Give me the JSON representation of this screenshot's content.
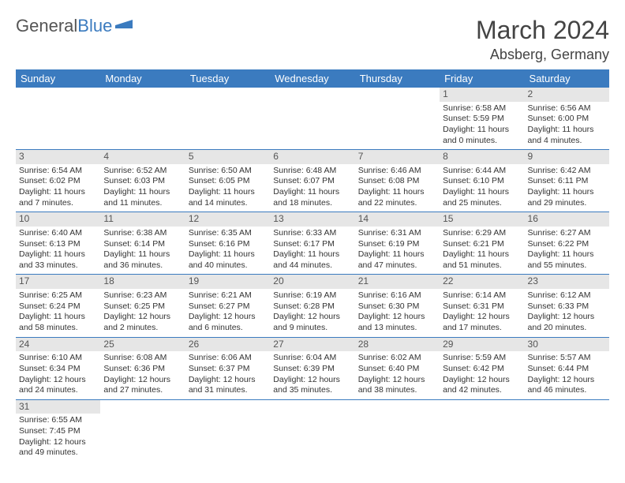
{
  "logo": {
    "text1": "General",
    "text2": "Blue"
  },
  "title": "March 2024",
  "location": "Absberg, Germany",
  "headers": [
    "Sunday",
    "Monday",
    "Tuesday",
    "Wednesday",
    "Thursday",
    "Friday",
    "Saturday"
  ],
  "colors": {
    "header_bg": "#3b7bbf",
    "header_fg": "#ffffff",
    "daynum_bg": "#e6e6e6",
    "cell_border": "#3b7bbf",
    "text": "#333333",
    "title": "#444444"
  },
  "weeks": [
    [
      null,
      null,
      null,
      null,
      null,
      {
        "n": "1",
        "sr": "6:58 AM",
        "ss": "5:59 PM",
        "dl": "11 hours and 0 minutes."
      },
      {
        "n": "2",
        "sr": "6:56 AM",
        "ss": "6:00 PM",
        "dl": "11 hours and 4 minutes."
      }
    ],
    [
      {
        "n": "3",
        "sr": "6:54 AM",
        "ss": "6:02 PM",
        "dl": "11 hours and 7 minutes."
      },
      {
        "n": "4",
        "sr": "6:52 AM",
        "ss": "6:03 PM",
        "dl": "11 hours and 11 minutes."
      },
      {
        "n": "5",
        "sr": "6:50 AM",
        "ss": "6:05 PM",
        "dl": "11 hours and 14 minutes."
      },
      {
        "n": "6",
        "sr": "6:48 AM",
        "ss": "6:07 PM",
        "dl": "11 hours and 18 minutes."
      },
      {
        "n": "7",
        "sr": "6:46 AM",
        "ss": "6:08 PM",
        "dl": "11 hours and 22 minutes."
      },
      {
        "n": "8",
        "sr": "6:44 AM",
        "ss": "6:10 PM",
        "dl": "11 hours and 25 minutes."
      },
      {
        "n": "9",
        "sr": "6:42 AM",
        "ss": "6:11 PM",
        "dl": "11 hours and 29 minutes."
      }
    ],
    [
      {
        "n": "10",
        "sr": "6:40 AM",
        "ss": "6:13 PM",
        "dl": "11 hours and 33 minutes."
      },
      {
        "n": "11",
        "sr": "6:38 AM",
        "ss": "6:14 PM",
        "dl": "11 hours and 36 minutes."
      },
      {
        "n": "12",
        "sr": "6:35 AM",
        "ss": "6:16 PM",
        "dl": "11 hours and 40 minutes."
      },
      {
        "n": "13",
        "sr": "6:33 AM",
        "ss": "6:17 PM",
        "dl": "11 hours and 44 minutes."
      },
      {
        "n": "14",
        "sr": "6:31 AM",
        "ss": "6:19 PM",
        "dl": "11 hours and 47 minutes."
      },
      {
        "n": "15",
        "sr": "6:29 AM",
        "ss": "6:21 PM",
        "dl": "11 hours and 51 minutes."
      },
      {
        "n": "16",
        "sr": "6:27 AM",
        "ss": "6:22 PM",
        "dl": "11 hours and 55 minutes."
      }
    ],
    [
      {
        "n": "17",
        "sr": "6:25 AM",
        "ss": "6:24 PM",
        "dl": "11 hours and 58 minutes."
      },
      {
        "n": "18",
        "sr": "6:23 AM",
        "ss": "6:25 PM",
        "dl": "12 hours and 2 minutes."
      },
      {
        "n": "19",
        "sr": "6:21 AM",
        "ss": "6:27 PM",
        "dl": "12 hours and 6 minutes."
      },
      {
        "n": "20",
        "sr": "6:19 AM",
        "ss": "6:28 PM",
        "dl": "12 hours and 9 minutes."
      },
      {
        "n": "21",
        "sr": "6:16 AM",
        "ss": "6:30 PM",
        "dl": "12 hours and 13 minutes."
      },
      {
        "n": "22",
        "sr": "6:14 AM",
        "ss": "6:31 PM",
        "dl": "12 hours and 17 minutes."
      },
      {
        "n": "23",
        "sr": "6:12 AM",
        "ss": "6:33 PM",
        "dl": "12 hours and 20 minutes."
      }
    ],
    [
      {
        "n": "24",
        "sr": "6:10 AM",
        "ss": "6:34 PM",
        "dl": "12 hours and 24 minutes."
      },
      {
        "n": "25",
        "sr": "6:08 AM",
        "ss": "6:36 PM",
        "dl": "12 hours and 27 minutes."
      },
      {
        "n": "26",
        "sr": "6:06 AM",
        "ss": "6:37 PM",
        "dl": "12 hours and 31 minutes."
      },
      {
        "n": "27",
        "sr": "6:04 AM",
        "ss": "6:39 PM",
        "dl": "12 hours and 35 minutes."
      },
      {
        "n": "28",
        "sr": "6:02 AM",
        "ss": "6:40 PM",
        "dl": "12 hours and 38 minutes."
      },
      {
        "n": "29",
        "sr": "5:59 AM",
        "ss": "6:42 PM",
        "dl": "12 hours and 42 minutes."
      },
      {
        "n": "30",
        "sr": "5:57 AM",
        "ss": "6:44 PM",
        "dl": "12 hours and 46 minutes."
      }
    ],
    [
      {
        "n": "31",
        "sr": "6:55 AM",
        "ss": "7:45 PM",
        "dl": "12 hours and 49 minutes."
      },
      null,
      null,
      null,
      null,
      null,
      null
    ]
  ],
  "labels": {
    "sunrise": "Sunrise: ",
    "sunset": "Sunset: ",
    "daylight": "Daylight: "
  }
}
